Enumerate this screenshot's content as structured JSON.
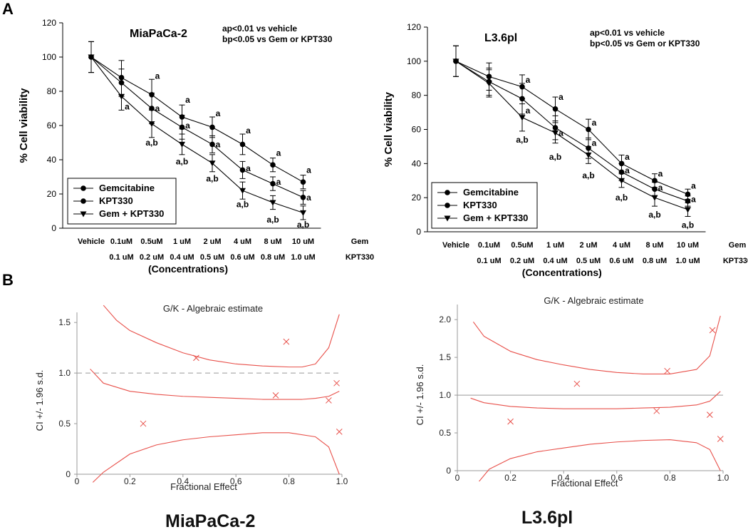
{
  "panel_labels": [
    "A",
    "B"
  ],
  "x_concentrations": {
    "gem_row": [
      "Vehicle",
      "0.1uM",
      "0.5uM",
      "1 uM",
      "2 uM",
      "4 uM",
      "8 uM",
      "10 uM"
    ],
    "kpt_row": [
      "0.1 uM",
      "0.2 uM",
      "0.4 uM",
      "0.5 uM",
      "0.6 uM",
      "0.8 uM",
      "1.0 uM"
    ],
    "gem_tag": "Gem",
    "kpt_tag": "KPT330",
    "axis_title": "(Concentrations)"
  },
  "captions": {
    "left": "MiaPaCa-2",
    "right": "L3.6pl"
  },
  "chart_data": [
    {
      "type": "line",
      "title": "MiaPaCa-2",
      "ylabel": "% Cell viability",
      "ylim": [
        0,
        120
      ],
      "yticks": [
        0,
        20,
        40,
        60,
        80,
        100,
        120
      ],
      "annotations": [
        "ap<0.01 vs vehicle",
        "bp<0.05 vs Gem or KPT330"
      ],
      "legend": [
        "Gemcitabine",
        "KPT330",
        "Gem + KPT330"
      ],
      "series": [
        {
          "name": "Gemcitabine",
          "marker": "circle",
          "values": [
            100,
            88,
            78,
            65,
            59,
            49,
            37,
            27
          ],
          "err": [
            9,
            10,
            9,
            7,
            6,
            6,
            4,
            4
          ]
        },
        {
          "name": "KPT330",
          "marker": "circle",
          "values": [
            100,
            85,
            70,
            59,
            49,
            34,
            26,
            18
          ],
          "err": [
            9,
            8,
            9,
            7,
            5,
            5,
            4,
            4
          ]
        },
        {
          "name": "Gem + KPT330",
          "marker": "triangle",
          "values": [
            100,
            77,
            61,
            49,
            38,
            22,
            15,
            9
          ],
          "err": [
            9,
            8,
            8,
            6,
            5,
            5,
            4,
            4
          ]
        }
      ],
      "sig_labels": [
        {
          "i": 1,
          "v": 71,
          "t": "a"
        },
        {
          "i": 2,
          "v": 89,
          "t": "a"
        },
        {
          "i": 2,
          "v": 70,
          "t": "a"
        },
        {
          "i": 2,
          "v": 50,
          "t": "a,b"
        },
        {
          "i": 3,
          "v": 75,
          "t": "a"
        },
        {
          "i": 3,
          "v": 60,
          "t": "a"
        },
        {
          "i": 3,
          "v": 39,
          "t": "a,b"
        },
        {
          "i": 4,
          "v": 67,
          "t": "a"
        },
        {
          "i": 4,
          "v": 49,
          "t": "a"
        },
        {
          "i": 4,
          "v": 29,
          "t": "a,b"
        },
        {
          "i": 5,
          "v": 57,
          "t": "a"
        },
        {
          "i": 5,
          "v": 35,
          "t": "a"
        },
        {
          "i": 5,
          "v": 14,
          "t": "a,b"
        },
        {
          "i": 6,
          "v": 44,
          "t": "a"
        },
        {
          "i": 6,
          "v": 27,
          "t": "a"
        },
        {
          "i": 6,
          "v": 5,
          "t": "a,b"
        },
        {
          "i": 7,
          "v": 34,
          "t": "a"
        },
        {
          "i": 7,
          "v": 18,
          "t": "a"
        },
        {
          "i": 7,
          "v": 2,
          "t": "a,b"
        }
      ]
    },
    {
      "type": "line",
      "title": "L3.6pl",
      "ylabel": "% Cell viability",
      "ylim": [
        0,
        120
      ],
      "yticks": [
        0,
        20,
        40,
        60,
        80,
        100,
        120
      ],
      "annotations": [
        "ap<0.01 vs vehicle",
        "bp<0.05 vs Gem or KPT330"
      ],
      "legend": [
        "Gemcitabine",
        "KPT330",
        "Gem + KPT330"
      ],
      "series": [
        {
          "name": "Gemcitabine",
          "marker": "circle",
          "values": [
            100,
            91,
            85,
            72,
            60,
            40,
            30,
            22
          ],
          "err": [
            9,
            8,
            7,
            7,
            6,
            5,
            4,
            3
          ]
        },
        {
          "name": "KPT330",
          "marker": "circle",
          "values": [
            100,
            88,
            78,
            61,
            49,
            35,
            25,
            18
          ],
          "err": [
            9,
            8,
            9,
            7,
            6,
            5,
            4,
            3
          ]
        },
        {
          "name": "Gem + KPT330",
          "marker": "triangle",
          "values": [
            100,
            87,
            67,
            58,
            45,
            30,
            20,
            13
          ],
          "err": [
            9,
            8,
            8,
            6,
            5,
            4,
            5,
            4
          ]
        }
      ],
      "sig_labels": [
        {
          "i": 2,
          "v": 89,
          "t": "a"
        },
        {
          "i": 2,
          "v": 71,
          "t": "a"
        },
        {
          "i": 2,
          "v": 54,
          "t": "a,b"
        },
        {
          "i": 3,
          "v": 79,
          "t": "a"
        },
        {
          "i": 3,
          "v": 58,
          "t": "a"
        },
        {
          "i": 3,
          "v": 44,
          "t": "a,b"
        },
        {
          "i": 4,
          "v": 64,
          "t": "a"
        },
        {
          "i": 4,
          "v": 52,
          "t": "a"
        },
        {
          "i": 4,
          "v": 33,
          "t": "a,b"
        },
        {
          "i": 5,
          "v": 44,
          "t": "a"
        },
        {
          "i": 5,
          "v": 36,
          "t": "a"
        },
        {
          "i": 5,
          "v": 20,
          "t": "a,b"
        },
        {
          "i": 6,
          "v": 34,
          "t": "a"
        },
        {
          "i": 6,
          "v": 26,
          "t": "a"
        },
        {
          "i": 6,
          "v": 10,
          "t": "a,b"
        },
        {
          "i": 7,
          "v": 27,
          "t": "a"
        },
        {
          "i": 7,
          "v": 19,
          "t": "a"
        },
        {
          "i": 7,
          "v": 4,
          "t": "a,b"
        }
      ]
    },
    {
      "type": "line",
      "title": "G/K - Algebraic estimate",
      "xlabel": "Fractional Effect",
      "ylabel": "CI +/- 1.96 s.d.",
      "xlim": [
        0,
        1
      ],
      "ylim": [
        0,
        1.6
      ],
      "xticks": [
        "0",
        "0.2",
        "0.4",
        "0.6",
        "0.8",
        "1.0"
      ],
      "yticks": [
        "0",
        "0.5",
        "1.0",
        "1.5"
      ],
      "reference_line": 1.0,
      "reference_style": "dashed",
      "ci_curve": {
        "fa": [
          0.05,
          0.1,
          0.2,
          0.3,
          0.4,
          0.5,
          0.6,
          0.7,
          0.8,
          0.85,
          0.9,
          0.95,
          0.99
        ],
        "ci": [
          1.04,
          0.9,
          0.82,
          0.79,
          0.77,
          0.76,
          0.75,
          0.74,
          0.74,
          0.74,
          0.75,
          0.77,
          0.82
        ]
      },
      "upper_bound": {
        "fa": [
          0.1,
          0.15,
          0.2,
          0.3,
          0.4,
          0.5,
          0.6,
          0.7,
          0.8,
          0.85,
          0.9,
          0.95,
          0.99
        ],
        "ci": [
          1.67,
          1.52,
          1.42,
          1.3,
          1.2,
          1.13,
          1.09,
          1.07,
          1.06,
          1.06,
          1.09,
          1.25,
          1.58
        ]
      },
      "lower_bound": {
        "fa": [
          0.06,
          0.1,
          0.2,
          0.3,
          0.4,
          0.5,
          0.6,
          0.7,
          0.8,
          0.9,
          0.95,
          0.99
        ],
        "ci": [
          -0.08,
          0.02,
          0.2,
          0.29,
          0.34,
          0.37,
          0.39,
          0.41,
          0.41,
          0.37,
          0.27,
          0.0
        ]
      },
      "points": [
        {
          "fa": 0.25,
          "ci": 0.5
        },
        {
          "fa": 0.45,
          "ci": 1.15
        },
        {
          "fa": 0.75,
          "ci": 0.78
        },
        {
          "fa": 0.79,
          "ci": 1.31
        },
        {
          "fa": 0.95,
          "ci": 0.73
        },
        {
          "fa": 0.98,
          "ci": 0.9
        },
        {
          "fa": 0.99,
          "ci": 0.42
        }
      ]
    },
    {
      "type": "line",
      "title": "G/K - Algebraic estimate",
      "xlabel": "Fractional Effect",
      "ylabel": "CI +/- 1.96 s.d.",
      "xlim": [
        0,
        1
      ],
      "ylim": [
        0,
        2.2
      ],
      "xticks": [
        "0",
        "0.2",
        "0.4",
        "0.6",
        "0.8",
        "1.0"
      ],
      "yticks": [
        "0",
        "0.5",
        "1.0",
        "1.5",
        "2.0"
      ],
      "reference_line": 1.0,
      "reference_style": "solid",
      "ci_curve": {
        "fa": [
          0.05,
          0.1,
          0.2,
          0.3,
          0.4,
          0.5,
          0.6,
          0.7,
          0.8,
          0.9,
          0.95,
          0.99
        ],
        "ci": [
          0.96,
          0.9,
          0.85,
          0.83,
          0.82,
          0.82,
          0.82,
          0.83,
          0.84,
          0.87,
          0.92,
          1.05
        ]
      },
      "upper_bound": {
        "fa": [
          0.06,
          0.1,
          0.2,
          0.3,
          0.4,
          0.5,
          0.6,
          0.7,
          0.8,
          0.9,
          0.95,
          0.99
        ],
        "ci": [
          1.97,
          1.78,
          1.58,
          1.47,
          1.4,
          1.34,
          1.3,
          1.28,
          1.28,
          1.34,
          1.52,
          2.05
        ]
      },
      "lower_bound": {
        "fa": [
          0.08,
          0.12,
          0.2,
          0.3,
          0.4,
          0.5,
          0.6,
          0.7,
          0.8,
          0.9,
          0.95,
          0.99
        ],
        "ci": [
          -0.15,
          0.02,
          0.16,
          0.25,
          0.3,
          0.35,
          0.38,
          0.4,
          0.41,
          0.37,
          0.28,
          0.0
        ]
      },
      "points": [
        {
          "fa": 0.2,
          "ci": 0.65
        },
        {
          "fa": 0.45,
          "ci": 1.15
        },
        {
          "fa": 0.75,
          "ci": 0.79
        },
        {
          "fa": 0.79,
          "ci": 1.32
        },
        {
          "fa": 0.95,
          "ci": 0.74
        },
        {
          "fa": 0.96,
          "ci": 1.86
        },
        {
          "fa": 0.99,
          "ci": 0.42
        }
      ]
    }
  ]
}
